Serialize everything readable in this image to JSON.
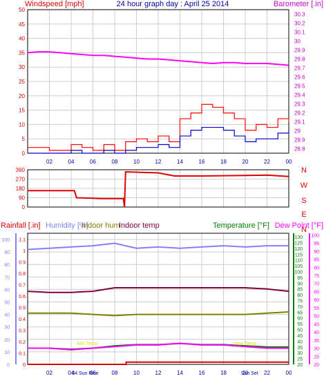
{
  "header": {
    "windspeed_label": "Windspeed [mph]",
    "title": "24 hour graph day : April 25 2014",
    "barometer_label": "Barometer [.in]"
  },
  "middle": {
    "compass_labels": [
      "N",
      "W",
      "S",
      "E",
      "N"
    ]
  },
  "bottom": {
    "rainfall_label": "Rainfall [.in]",
    "humidity_label": "Humidity [%]",
    "indoor_hum_label": "Indoor hum",
    "indoor_temp_label": "Indoor temp",
    "temperature_label": "Temperature [°F]",
    "dewpoint_label": "Dew Point [°F]",
    "sun_labels": [
      {
        "text": "04 Sun Rise",
        "hour": 5.3
      },
      {
        "text": "Sun Set",
        "hour": 20.4
      }
    ],
    "event_labels": [
      {
        "text": "Min Temp",
        "hour": 5.5
      },
      {
        "text": "Max Temp",
        "hour": 20.0
      }
    ]
  },
  "colors": {
    "wind": "#ff0000",
    "wind_avg": "#0000cc",
    "barometer": "#ff00ff",
    "direction": "#dd0000",
    "rain": "#dd0000",
    "humidity": "#8080ff",
    "indoor_hum": "#808000",
    "indoor_temp": "#800040",
    "temperature": "#008000",
    "dewpoint": "#ff00ff",
    "grid": "#cccccc",
    "title": "#0000aa"
  },
  "chart_data": [
    {
      "type": "line",
      "name_ref": "wind",
      "x_ticks": [
        "02",
        "04",
        "06",
        "08",
        "10",
        "12",
        "14",
        "16",
        "18",
        "20",
        "22",
        "00"
      ],
      "y_left": {
        "label": "Windspeed [mph]",
        "ticks": [
          0,
          5,
          10,
          15,
          20,
          25,
          30,
          35,
          40,
          45,
          50
        ],
        "lim": [
          0,
          50
        ]
      },
      "y_right": {
        "label": "Barometer [.in]",
        "ticks": [
          28.8,
          28.9,
          29,
          29.1,
          29.2,
          29.3,
          29.4,
          29.5,
          29.6,
          29.7,
          29.8,
          29.9,
          30,
          30.1,
          30.2,
          30.3
        ],
        "lim": [
          28.75,
          30.35
        ]
      },
      "series": [
        {
          "key": "barometer",
          "axis": "right",
          "x": [
            0,
            1,
            2,
            3,
            4,
            5,
            6,
            7,
            8,
            9,
            10,
            11,
            12,
            13,
            14,
            15,
            16,
            17,
            18,
            19,
            20,
            21,
            22,
            23,
            24
          ],
          "values": [
            29.87,
            29.88,
            29.88,
            29.87,
            29.86,
            29.85,
            29.84,
            29.84,
            29.83,
            29.82,
            29.81,
            29.8,
            29.8,
            29.79,
            29.78,
            29.77,
            29.76,
            29.75,
            29.76,
            29.76,
            29.75,
            29.75,
            29.75,
            29.74,
            29.73
          ]
        },
        {
          "key": "wind_gust",
          "axis": "left",
          "x": [
            0,
            1,
            2,
            3,
            4,
            5,
            6,
            7,
            8,
            9,
            10,
            11,
            12,
            13,
            14,
            15,
            16,
            17,
            18,
            19,
            20,
            21,
            22,
            23,
            24
          ],
          "values": [
            2,
            2,
            1,
            1,
            3,
            2,
            1,
            3,
            1,
            4,
            5,
            4,
            6,
            4,
            12,
            14,
            17,
            16,
            14,
            12,
            8,
            10,
            9,
            12,
            11
          ]
        },
        {
          "key": "wind_avg",
          "axis": "left",
          "x": [
            0,
            1,
            2,
            3,
            4,
            5,
            6,
            7,
            8,
            9,
            10,
            11,
            12,
            13,
            14,
            15,
            16,
            17,
            18,
            19,
            20,
            21,
            22,
            23,
            24
          ],
          "values": [
            0,
            0,
            0,
            0,
            1,
            0,
            0,
            1,
            0,
            1,
            2,
            2,
            3,
            2,
            6,
            8,
            9,
            9,
            8,
            6,
            4,
            5,
            5,
            7,
            8
          ]
        }
      ]
    },
    {
      "type": "line",
      "name_ref": "direction",
      "y_left": {
        "ticks": [
          0,
          90,
          180,
          270,
          360
        ],
        "lim": [
          0,
          360
        ]
      },
      "series": [
        {
          "key": "direction",
          "axis": "left",
          "x": [
            0,
            4.3,
            4.5,
            6.8,
            8.8,
            8.9,
            9.0,
            12.0,
            13.5,
            16.0,
            20.0,
            22.0,
            24.0
          ],
          "values": [
            158,
            158,
            90,
            82,
            82,
            0,
            340,
            330,
            300,
            300,
            305,
            308,
            295
          ]
        }
      ]
    },
    {
      "type": "line",
      "name_ref": "multi",
      "y_rain": {
        "label": "Rainfall [.in]",
        "ticks": [
          0,
          0.1,
          0.2,
          0.3,
          0.4,
          0.5,
          0.6,
          0.7,
          0.8,
          0.9,
          1,
          1.1
        ],
        "lim": [
          0,
          1.15
        ]
      },
      "y_hum": {
        "label": "Humidity [%]",
        "ticks": [
          0,
          10,
          20,
          30,
          40,
          50,
          60,
          70,
          80,
          90,
          100
        ],
        "lim": [
          0,
          105
        ]
      },
      "y_temp": {
        "label": "Temperature [°F]",
        "ticks": [
          20,
          25,
          30,
          35,
          40,
          45,
          50,
          55,
          60,
          65,
          70,
          75,
          80,
          85,
          90,
          95,
          100,
          105,
          110,
          115,
          120,
          125,
          130
        ],
        "lim": [
          20,
          133
        ]
      },
      "y_dew": {
        "label": "Dew Point [°F]",
        "ticks": [
          20,
          25,
          30,
          35,
          40,
          45,
          50,
          55,
          60,
          65,
          70,
          75,
          80,
          85,
          90,
          95,
          100
        ],
        "lim": [
          20,
          101
        ]
      },
      "series": [
        {
          "key": "humidity",
          "axis": "hum",
          "x": [
            0,
            2,
            4,
            6,
            8,
            10,
            12,
            14,
            16,
            18,
            20,
            22,
            24
          ],
          "values": [
            92,
            93,
            94,
            95,
            97,
            93,
            94,
            93,
            94,
            95,
            94,
            95,
            95
          ]
        },
        {
          "key": "indoor_hum",
          "axis": "hum",
          "x": [
            0,
            2,
            4,
            6,
            8,
            10,
            12,
            14,
            16,
            18,
            20,
            22,
            24
          ],
          "values": [
            41,
            41,
            41,
            40,
            39,
            40,
            40,
            40,
            40,
            40,
            40,
            41,
            42
          ]
        },
        {
          "key": "indoor_temp",
          "axis": "temp",
          "x": [
            0,
            2,
            4,
            6,
            8,
            10,
            12,
            14,
            16,
            18,
            20,
            22,
            24
          ],
          "values": [
            83,
            82,
            82,
            83,
            86,
            86,
            86,
            86,
            86,
            86,
            86,
            85,
            83
          ]
        },
        {
          "key": "temperature",
          "axis": "temp",
          "x": [
            0,
            2,
            4,
            6,
            8,
            10,
            12,
            14,
            16,
            18,
            20,
            22,
            24
          ],
          "values": [
            34,
            34,
            33,
            34,
            36,
            37,
            37,
            38,
            37,
            37,
            36,
            35,
            35
          ]
        },
        {
          "key": "dewpoint",
          "axis": "dew",
          "x": [
            0,
            2,
            4,
            6,
            8,
            10,
            12,
            14,
            16,
            18,
            20,
            22,
            24
          ],
          "values": [
            30,
            30,
            29,
            30,
            31,
            32,
            32,
            33,
            32,
            32,
            31,
            30,
            30
          ]
        },
        {
          "key": "rain",
          "axis": "rain",
          "x": [
            0,
            9,
            9.05,
            24
          ],
          "values": [
            0,
            0,
            0.02,
            0.02
          ]
        }
      ]
    }
  ]
}
